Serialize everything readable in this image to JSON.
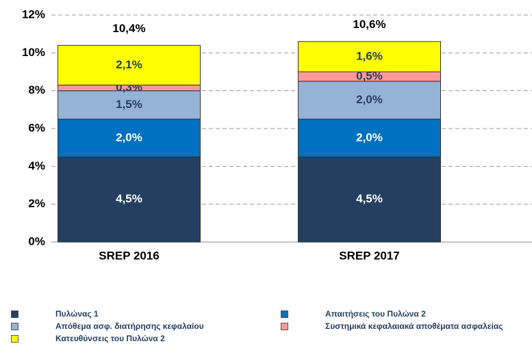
{
  "chart_data": {
    "type": "stacked_bar",
    "categories": [
      "SREP 2016",
      "SREP 2017"
    ],
    "series": [
      {
        "name": "Πυλώνας 1",
        "color": "#243f60",
        "label_color": "#ffffff",
        "values": [
          4.5,
          4.5
        ],
        "value_labels": [
          "4,5%",
          "4,5%"
        ]
      },
      {
        "name": "Απαιτήσεις του Πυλώνα 2",
        "color": "#0070c0",
        "label_color": "#ffffff",
        "values": [
          2.0,
          2.0
        ],
        "value_labels": [
          "2,0%",
          "2,0%"
        ]
      },
      {
        "name": "Απόθεμα ασφ. διατήρησης κεφαλαίου",
        "color": "#95b3d7",
        "label_color": "#243f60",
        "values": [
          1.5,
          2.0
        ],
        "value_labels": [
          "1,5%",
          "2,0%"
        ]
      },
      {
        "name": "Συστημικά κεφαλαιακά αποθέματα ασφαλείας",
        "color": "#ff9999",
        "label_color": "#243f60",
        "values": [
          0.3,
          0.5
        ],
        "value_labels": [
          "0,3%",
          "0,5%"
        ]
      },
      {
        "name": "Κατευθύνσεις του Πυλώνα 2",
        "color": "#ffff00",
        "label_color": "#243f60",
        "values": [
          2.1,
          1.6
        ],
        "value_labels": [
          "2,1%",
          "1,6%"
        ]
      }
    ],
    "totals": [
      10.4,
      10.6
    ],
    "totals_labels": [
      "10,4%",
      "10,6%"
    ],
    "ylim": [
      0,
      12
    ],
    "yticks": [
      {
        "value": 0,
        "label": "0%"
      },
      {
        "value": 2,
        "label": "2%"
      },
      {
        "value": 4,
        "label": "4%"
      },
      {
        "value": 6,
        "label": "6%"
      },
      {
        "value": 8,
        "label": "8%"
      },
      {
        "value": 10,
        "label": "10%"
      },
      {
        "value": 12,
        "label": "12%"
      }
    ],
    "grid": true
  }
}
